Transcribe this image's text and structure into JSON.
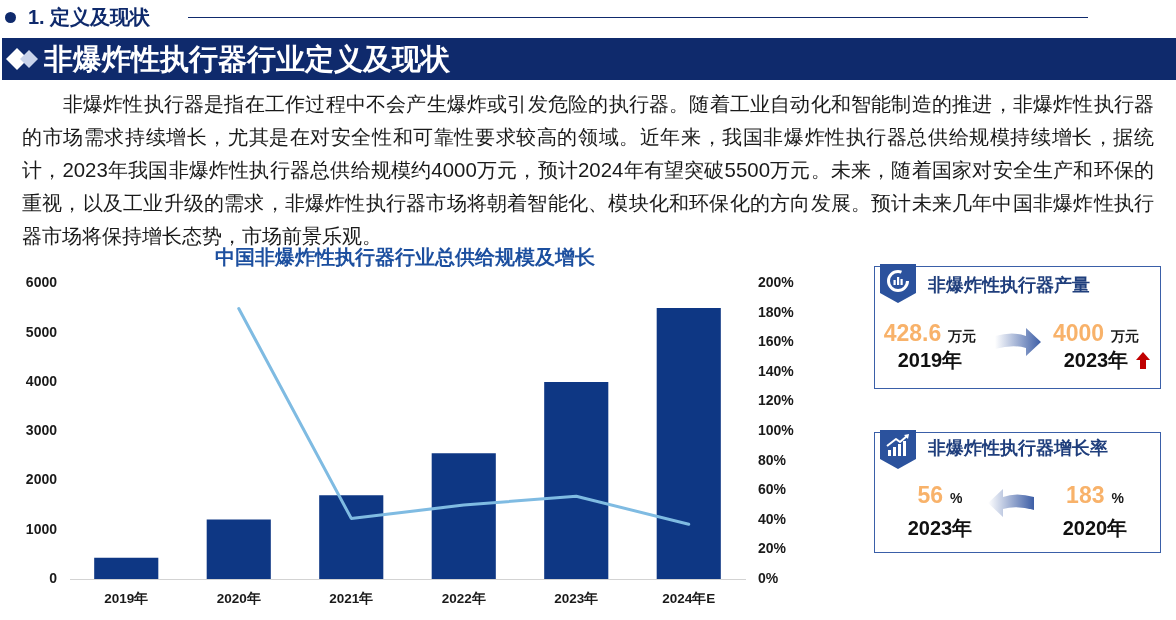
{
  "chart_data": [
    {
      "type": "other",
      "subtitle": "1. 定义及现状",
      "title": "非爆炸性执行器行业定义及现状",
      "annotations": [
        "非爆炸性执行器是指在工作过程中不会产生爆炸或引发危险的执行器。随着工业自动化和智能制造的推进，非爆炸性执行器的市场需求持续增长，尤其是在对安全性和可靠性要求较高的领域。近年来，我国非爆炸性执行器总供给规模持续增长，据统计，2023年我国非爆炸性执行器总供给规模约4000万元，预计2024年有望突破5500万元。未来，随着国家对安全生产和环保的重视，以及工业升级的需求，非爆炸性执行器市场将朝着智能化、模块化和环保化的方向发展。预计未来几年中国非爆炸性执行器市场将保持增长态势，市场前景乐观。"
      ]
    },
    {
      "type": "bar",
      "title": "中国非爆炸性执行器行业总供给规模及增长",
      "categories": [
        "2019年",
        "2020年",
        "2021年",
        "2022年",
        "2023年",
        "2024年E"
      ],
      "series": [
        {
          "type": "bar",
          "color": "#0e3784",
          "values": [
            430,
            1210,
            1700,
            2550,
            4000,
            5500
          ]
        },
        {
          "type": "line",
          "axis": "y2",
          "color": "#7fbbe2",
          "values": [
            null,
            183,
            41,
            50,
            56,
            37
          ]
        }
      ],
      "ylim": [
        0,
        6000
      ],
      "yticks": [
        0,
        1000,
        2000,
        3000,
        4000,
        5000,
        6000
      ],
      "y2lim": [
        0,
        200
      ],
      "y2ticks": [
        {
          "value": 0,
          "label": "0%"
        },
        {
          "value": 20,
          "label": "20%"
        },
        {
          "value": 40,
          "label": "40%"
        },
        {
          "value": 60,
          "label": "60%"
        },
        {
          "value": 80,
          "label": "80%"
        },
        {
          "value": 100,
          "label": "100%"
        },
        {
          "value": 120,
          "label": "120%"
        },
        {
          "value": 140,
          "label": "140%"
        },
        {
          "value": 160,
          "label": "160%"
        },
        {
          "value": 180,
          "label": "180%"
        },
        {
          "value": 200,
          "label": "200%"
        }
      ],
      "marker": "none"
    },
    {
      "type": "other",
      "title": "非爆炸性执行器产量",
      "categories": [
        "2019年",
        "2023年"
      ],
      "values": [
        428.6,
        4000
      ],
      "data_labels": true,
      "ylabel": "万元"
    },
    {
      "type": "other",
      "title": "非爆炸性执行器增长率",
      "categories": [
        "2023年",
        "2020年"
      ],
      "values": [
        56,
        183
      ],
      "data_labels": true,
      "ylabel": "%"
    }
  ]
}
